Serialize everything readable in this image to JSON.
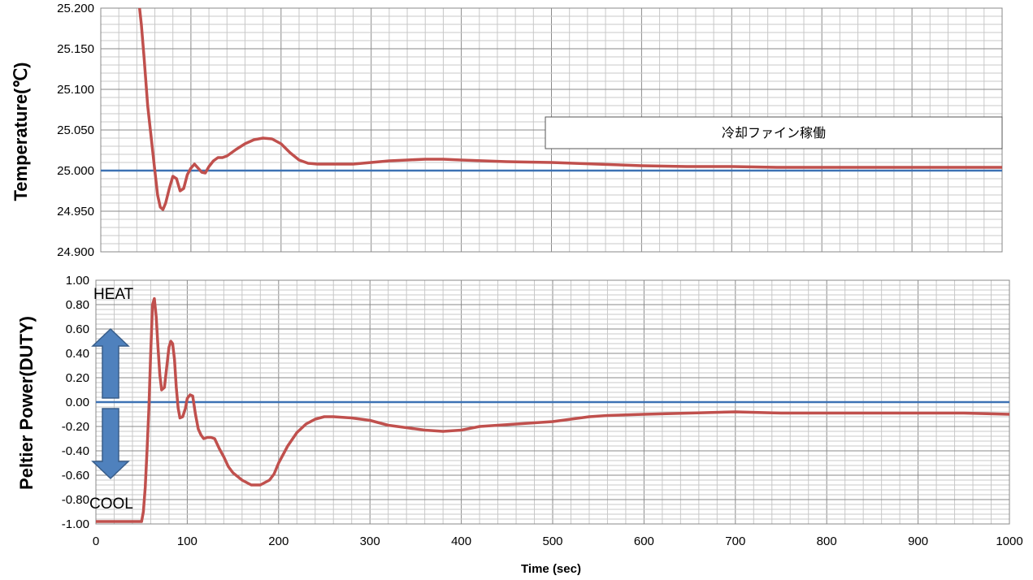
{
  "chart_data": [
    {
      "type": "line",
      "title": "",
      "xlabel": "",
      "ylabel": "Temperature(℃)",
      "xlim": [
        0,
        1000
      ],
      "ylim": [
        24.9,
        25.2
      ],
      "x_ticks": [
        0,
        100,
        200,
        300,
        400,
        500,
        600,
        700,
        800,
        900,
        1000
      ],
      "y_ticks": [
        "24.900",
        "24.950",
        "25.000",
        "25.050",
        "25.100",
        "25.150",
        "25.200"
      ],
      "grid": true,
      "reference_line": {
        "y": 25.0,
        "color": "#3d72b4"
      },
      "annotation": "冷却ファイン稼働",
      "series": [
        {
          "color": "#c0504d",
          "x": [
            43,
            45,
            48,
            52,
            56,
            60,
            63,
            66,
            69,
            72,
            76,
            80,
            84,
            88,
            92,
            96,
            100,
            104,
            108,
            112,
            116,
            120,
            125,
            130,
            135,
            140,
            150,
            160,
            170,
            180,
            190,
            200,
            210,
            220,
            230,
            240,
            260,
            280,
            300,
            320,
            340,
            360,
            380,
            400,
            450,
            500,
            550,
            600,
            650,
            700,
            750,
            800,
            850,
            900,
            950,
            1000
          ],
          "y": [
            25.2,
            25.18,
            25.14,
            25.08,
            25.04,
            25.0,
            24.97,
            24.955,
            24.952,
            24.96,
            24.978,
            24.993,
            24.99,
            24.975,
            24.978,
            24.995,
            25.003,
            25.008,
            25.003,
            24.998,
            24.997,
            25.005,
            25.012,
            25.016,
            25.016,
            25.018,
            25.026,
            25.033,
            25.038,
            25.04,
            25.039,
            25.033,
            25.022,
            25.013,
            25.009,
            25.008,
            25.008,
            25.008,
            25.01,
            25.012,
            25.013,
            25.014,
            25.014,
            25.013,
            25.011,
            25.01,
            25.008,
            25.006,
            25.005,
            25.005,
            25.004,
            25.004,
            25.004,
            25.004,
            25.004,
            25.004
          ]
        }
      ]
    },
    {
      "type": "line",
      "title": "",
      "xlabel": "Time (sec)",
      "ylabel": "Peltier Power(DUTY)",
      "xlim": [
        0,
        1000
      ],
      "ylim": [
        -1.0,
        1.0
      ],
      "x_ticks": [
        0,
        100,
        200,
        300,
        400,
        500,
        600,
        700,
        800,
        900,
        1000
      ],
      "y_ticks": [
        "-1.00",
        "-0.80",
        "-0.60",
        "-0.40",
        "-0.20",
        "0.00",
        "0.20",
        "0.40",
        "0.60",
        "0.80",
        "1.00"
      ],
      "grid": true,
      "reference_line": {
        "y": 0.0,
        "color": "#3d72b4"
      },
      "annotations": [
        "HEAT",
        "COOL"
      ],
      "series": [
        {
          "color": "#c0504d",
          "x": [
            0,
            10,
            20,
            30,
            40,
            50,
            52,
            54,
            56,
            58,
            60,
            62,
            64,
            66,
            68,
            70,
            72,
            75,
            78,
            80,
            82,
            84,
            86,
            88,
            90,
            92,
            95,
            98,
            100,
            103,
            106,
            109,
            112,
            115,
            118,
            122,
            126,
            130,
            135,
            140,
            145,
            150,
            160,
            170,
            180,
            190,
            195,
            200,
            210,
            220,
            230,
            240,
            250,
            260,
            280,
            300,
            320,
            340,
            360,
            380,
            400,
            420,
            440,
            460,
            480,
            500,
            520,
            540,
            560,
            600,
            650,
            700,
            750,
            800,
            850,
            900,
            950,
            1000
          ],
          "y": [
            -0.98,
            -0.98,
            -0.98,
            -0.98,
            -0.98,
            -0.98,
            -0.9,
            -0.7,
            -0.4,
            -0.05,
            0.4,
            0.8,
            0.85,
            0.7,
            0.45,
            0.22,
            0.1,
            0.12,
            0.32,
            0.45,
            0.5,
            0.48,
            0.35,
            0.12,
            -0.05,
            -0.13,
            -0.12,
            -0.05,
            0.03,
            0.06,
            0.05,
            -0.1,
            -0.22,
            -0.27,
            -0.3,
            -0.29,
            -0.29,
            -0.3,
            -0.38,
            -0.45,
            -0.53,
            -0.58,
            -0.64,
            -0.68,
            -0.68,
            -0.64,
            -0.59,
            -0.5,
            -0.36,
            -0.25,
            -0.18,
            -0.14,
            -0.12,
            -0.12,
            -0.13,
            -0.15,
            -0.19,
            -0.21,
            -0.23,
            -0.24,
            -0.23,
            -0.2,
            -0.19,
            -0.18,
            -0.17,
            -0.16,
            -0.14,
            -0.12,
            -0.11,
            -0.1,
            -0.09,
            -0.08,
            -0.09,
            -0.09,
            -0.09,
            -0.09,
            -0.09,
            -0.1
          ]
        }
      ]
    }
  ]
}
